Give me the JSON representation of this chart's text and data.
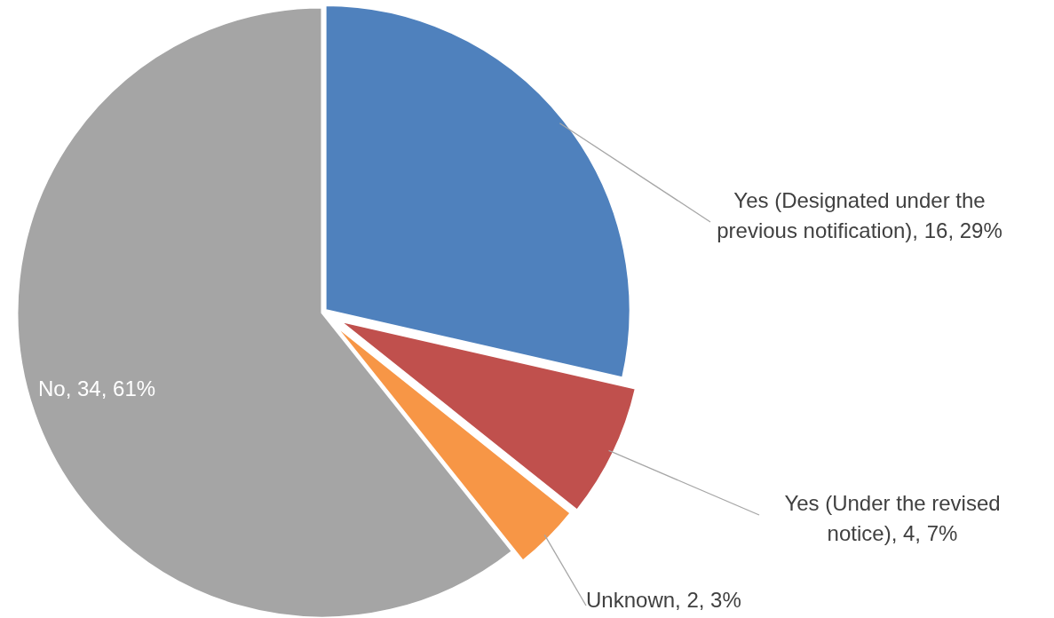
{
  "chart_data": {
    "type": "pie",
    "categories": [
      "Yes (Designated under the previous notification)",
      "Yes (Under the revised notice)",
      "Unknown",
      "No"
    ],
    "values": [
      16,
      4,
      2,
      34
    ],
    "value_labels": [
      ", 16, 29%",
      ", 4, 7%",
      ", 2, 3%",
      ", 34, 61%"
    ],
    "colors": [
      "#4f81bd",
      "#c0504d",
      "#f79646",
      "#a5a5a5"
    ],
    "legend": false
  }
}
